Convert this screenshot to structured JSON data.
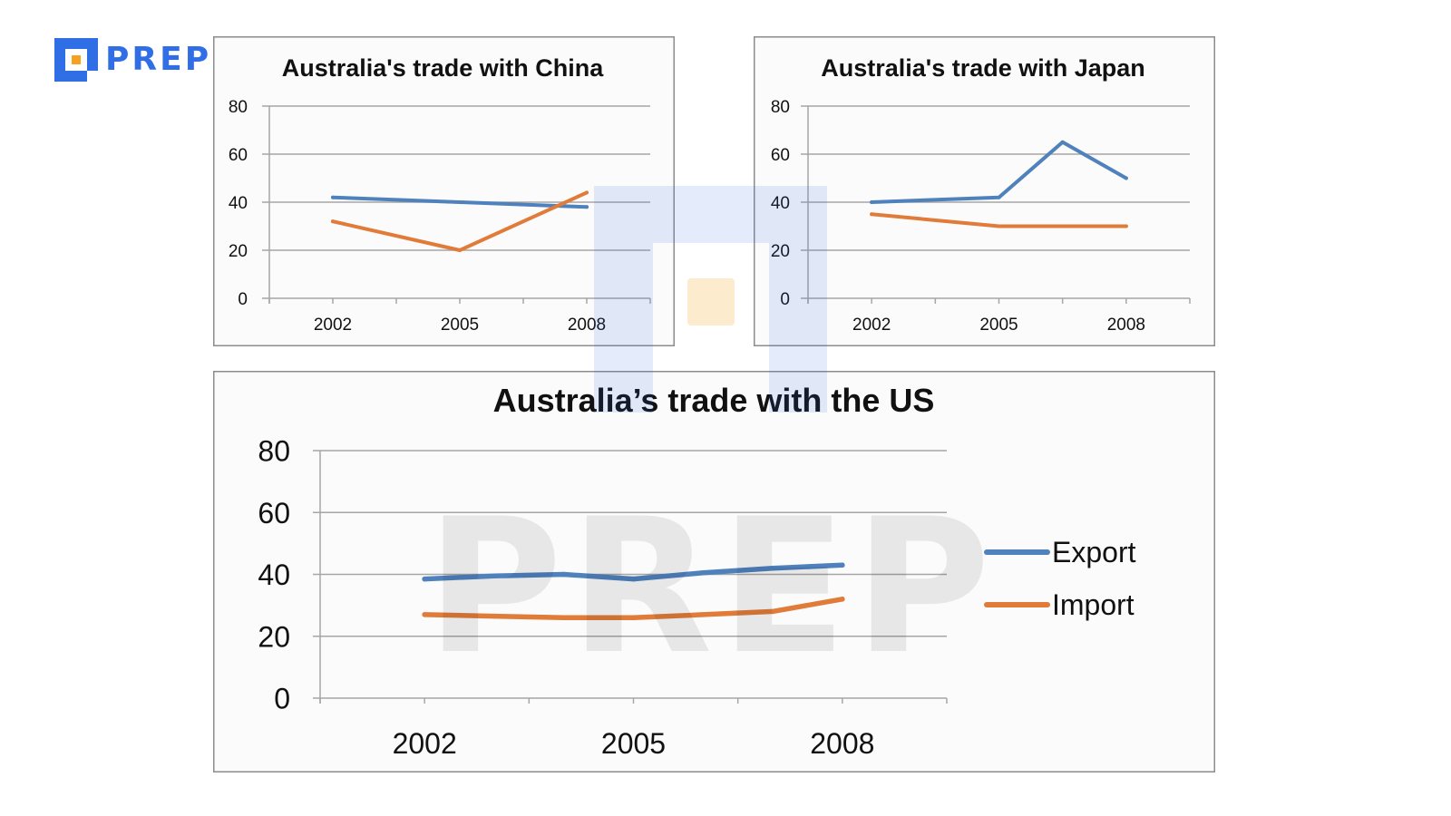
{
  "brand": {
    "logo_text": "PREP",
    "color": "#2f6ee5"
  },
  "watermark": {
    "text": "PREP"
  },
  "colors": {
    "export": "#4f81bd",
    "import": "#e07b39",
    "grid": "#a6a6a6",
    "frame": "#8c8c8c",
    "panel_bg": "#fbfbfb"
  },
  "chart_data": [
    {
      "type": "line",
      "title": "Australia's trade with China",
      "x": [
        "2002",
        "2005",
        "2008"
      ],
      "ylim": [
        0,
        80
      ],
      "yticks": [
        0,
        20,
        40,
        60,
        80
      ],
      "grid": true,
      "series": [
        {
          "key": "export",
          "x": [
            2002,
            2005,
            2008
          ],
          "values": [
            42,
            40,
            38
          ]
        },
        {
          "key": "import",
          "x": [
            2002,
            2005,
            2008
          ],
          "values": [
            32,
            20,
            44
          ]
        }
      ]
    },
    {
      "type": "line",
      "title": "Australia's trade with Japan",
      "x": [
        "2002",
        "2005",
        "2008"
      ],
      "ylim": [
        0,
        80
      ],
      "yticks": [
        0,
        20,
        40,
        60,
        80
      ],
      "grid": true,
      "series": [
        {
          "key": "export",
          "x": [
            2002,
            2005,
            2006.5,
            2008
          ],
          "values": [
            40,
            42,
            65,
            50
          ]
        },
        {
          "key": "import",
          "x": [
            2002,
            2005,
            2008
          ],
          "values": [
            35,
            30,
            30
          ]
        }
      ]
    },
    {
      "type": "line",
      "title": "Australia’s trade with the US",
      "x": [
        "2002",
        "2005",
        "2008"
      ],
      "ylim": [
        0,
        80
      ],
      "yticks": [
        0,
        20,
        40,
        60,
        80
      ],
      "grid": true,
      "legend_position": "right",
      "series": [
        {
          "key": "export",
          "name": "Export",
          "x": [
            2002,
            2003,
            2004,
            2005,
            2006,
            2007,
            2008
          ],
          "values": [
            38.5,
            39.5,
            40,
            38.5,
            40.5,
            42,
            43
          ]
        },
        {
          "key": "import",
          "name": "Import",
          "x": [
            2002,
            2003,
            2004,
            2005,
            2006,
            2007,
            2008
          ],
          "values": [
            27,
            26.5,
            26,
            26,
            27,
            28,
            32
          ]
        }
      ]
    }
  ]
}
